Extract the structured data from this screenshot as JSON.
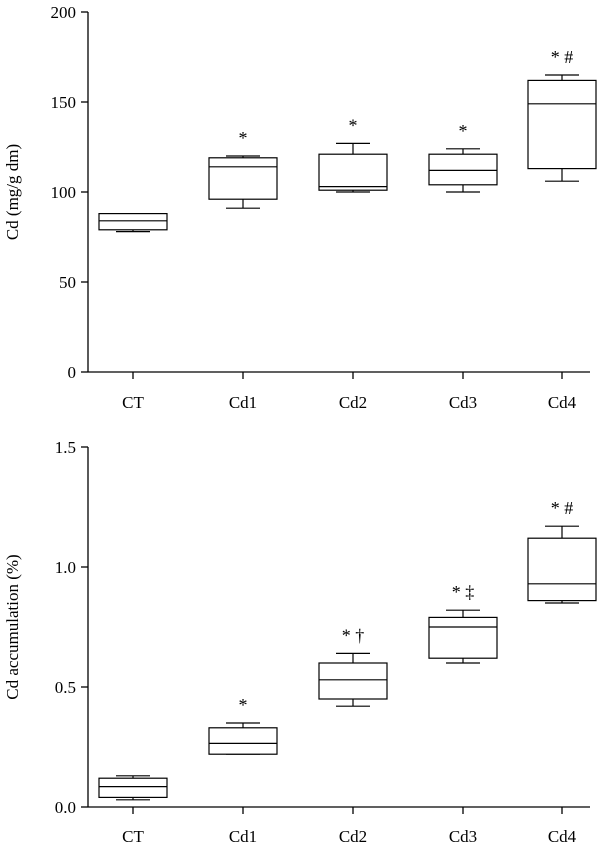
{
  "chart_data": [
    {
      "type": "box",
      "ylabel": "Cd (mg/g dm)",
      "xlabel": "",
      "ylim": [
        0,
        200
      ],
      "yticks": [
        "0",
        "50",
        "100",
        "150",
        "200"
      ],
      "categories": [
        "CT",
        "Cd1",
        "Cd2",
        "Cd3",
        "Cd4"
      ],
      "boxes": [
        {
          "category": "CT",
          "min": 78,
          "q1": 79,
          "median": 84,
          "q3": 88,
          "max": 88,
          "marks": ""
        },
        {
          "category": "Cd1",
          "min": 91,
          "q1": 96,
          "median": 114,
          "q3": 119,
          "max": 120,
          "marks": "*"
        },
        {
          "category": "Cd2",
          "min": 100,
          "q1": 101,
          "median": 103,
          "q3": 121,
          "max": 127,
          "marks": "*"
        },
        {
          "category": "Cd3",
          "min": 100,
          "q1": 104,
          "median": 112,
          "q3": 121,
          "max": 124,
          "marks": "*"
        },
        {
          "category": "Cd4",
          "min": 106,
          "q1": 113,
          "median": 149,
          "q3": 162,
          "max": 165,
          "marks": "* #"
        }
      ]
    },
    {
      "type": "box",
      "ylabel": "Cd accumulation (%)",
      "xlabel": "",
      "ylim": [
        0,
        1.5
      ],
      "yticks": [
        "0.0",
        "0.5",
        "1.0",
        "1.5"
      ],
      "categories": [
        "CT",
        "Cd1",
        "Cd2",
        "Cd3",
        "Cd4"
      ],
      "boxes": [
        {
          "category": "CT",
          "min": 0.03,
          "q1": 0.04,
          "median": 0.085,
          "q3": 0.12,
          "max": 0.13,
          "marks": ""
        },
        {
          "category": "Cd1",
          "min": 0.22,
          "q1": 0.22,
          "median": 0.265,
          "q3": 0.33,
          "max": 0.35,
          "marks": "*"
        },
        {
          "category": "Cd2",
          "min": 0.42,
          "q1": 0.45,
          "median": 0.53,
          "q3": 0.6,
          "max": 0.64,
          "marks": "* †"
        },
        {
          "category": "Cd3",
          "min": 0.6,
          "q1": 0.62,
          "median": 0.75,
          "q3": 0.79,
          "max": 0.82,
          "marks": "* ‡"
        },
        {
          "category": "Cd4",
          "min": 0.85,
          "q1": 0.86,
          "median": 0.93,
          "q3": 1.12,
          "max": 1.17,
          "marks": "* #"
        }
      ]
    }
  ]
}
